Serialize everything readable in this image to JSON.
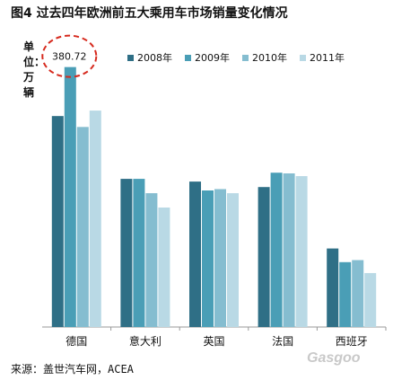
{
  "title": "图4   过去四年欧洲前五大乘用车市场销量变化情况",
  "unit": "单位：万辆",
  "source": "来源：盖世汽车网，ACEA",
  "watermark": "Gasgoo",
  "colors": {
    "2008年": "#2f6f86",
    "2009年": "#4a9eb6",
    "2010年": "#85bdd0",
    "2011年": "#b9d9e5",
    "callout": "#d62a1e",
    "axis": "#999999"
  },
  "chart_data": {
    "type": "bar",
    "title": "图4   过去四年欧洲前五大乘用车市场销量变化情况",
    "ylabel": "单位：万辆",
    "xlabel": "",
    "categories": [
      "德国",
      "意大利",
      "英国",
      "法国",
      "西班牙"
    ],
    "series": [
      {
        "name": "2008年",
        "values": [
          309,
          217,
          213,
          205,
          115
        ]
      },
      {
        "name": "2009年",
        "values": [
          380.72,
          217,
          200,
          226,
          95
        ]
      },
      {
        "name": "2010年",
        "values": [
          293,
          196,
          202,
          225,
          98
        ]
      },
      {
        "name": "2011年",
        "values": [
          317,
          175,
          196,
          221,
          79
        ]
      }
    ],
    "ylim": [
      0,
      400
    ],
    "grid": false,
    "legend": "top",
    "annotations": [
      {
        "category": "德国",
        "series": "2009年",
        "text": "380.72"
      }
    ]
  }
}
